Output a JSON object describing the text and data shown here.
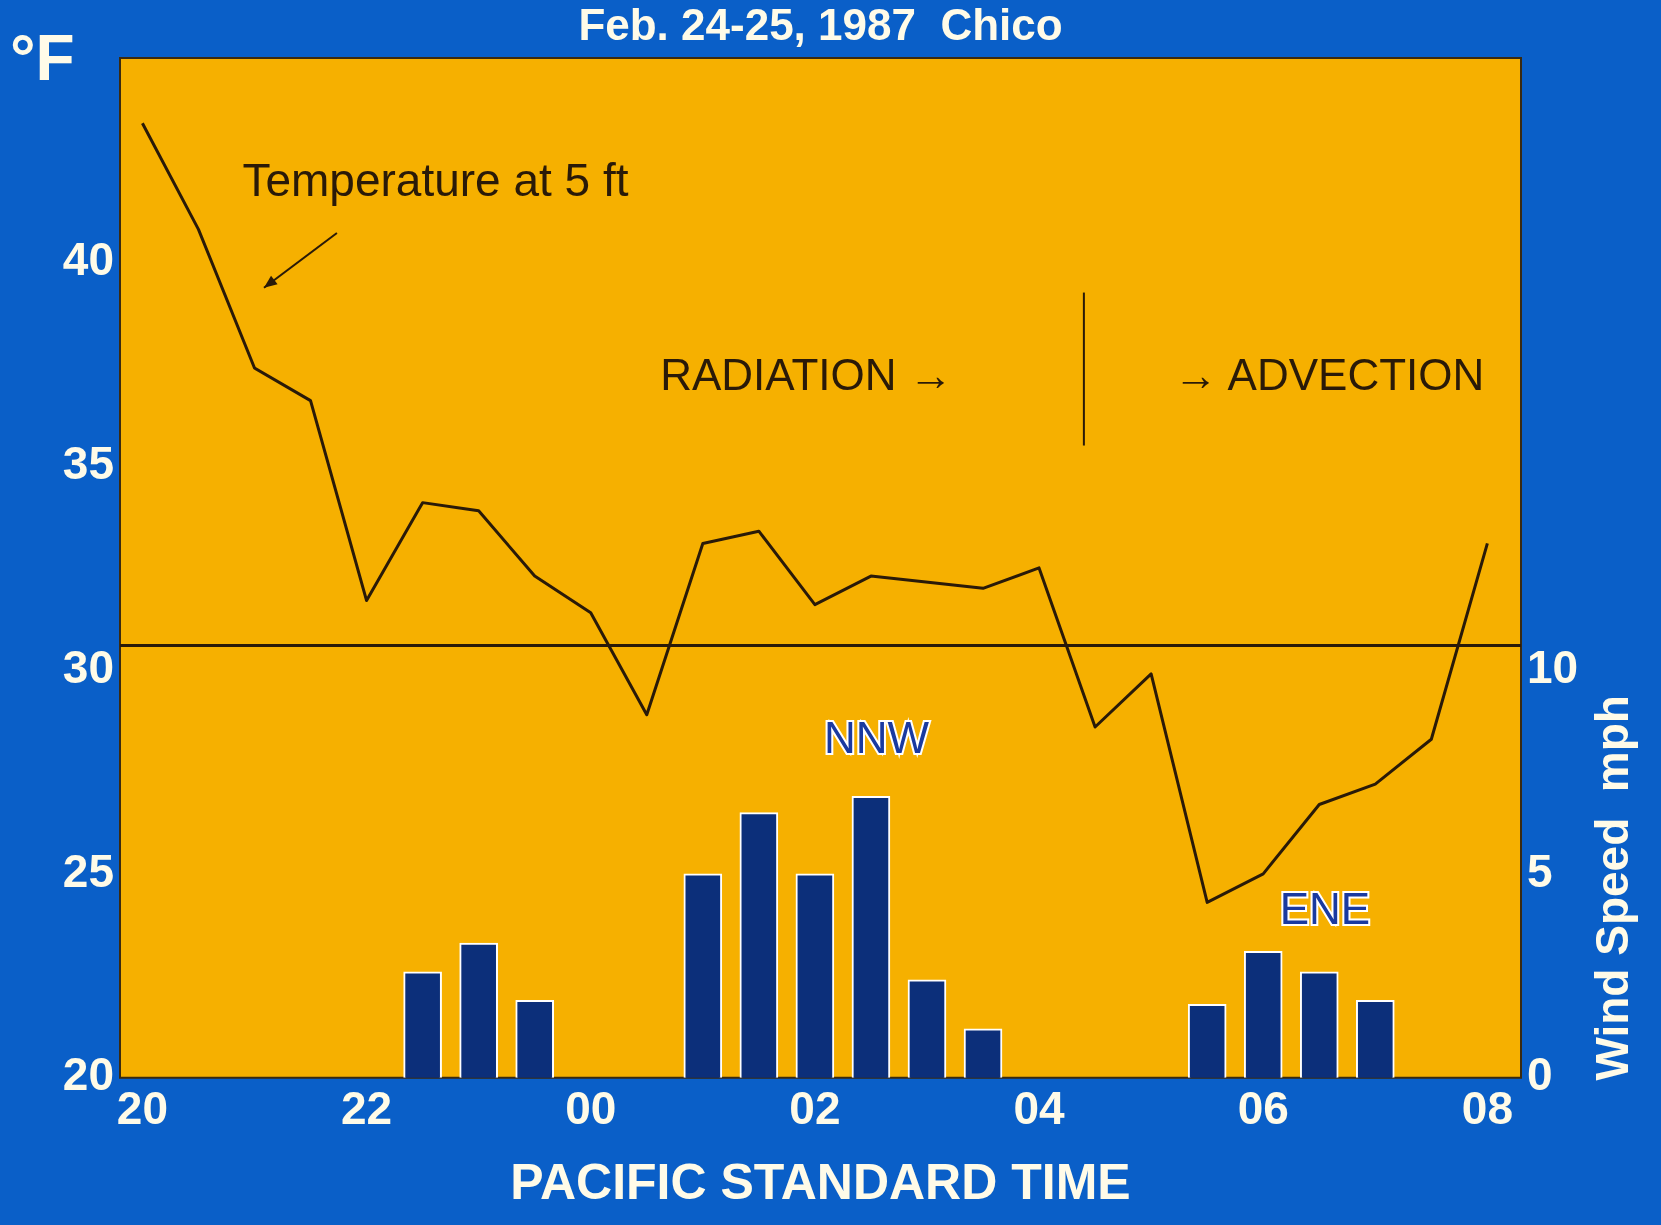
{
  "chart_data": {
    "type": "line",
    "title": "Feb. 24-25, 1987  Chico",
    "xlabel": "PACIFIC STANDARD TIME",
    "ylabel": "°F",
    "y2label": "Wind Speed  mph",
    "xlim": [
      "1987-02-24T19:48",
      "1987-02-25T08:18"
    ],
    "xticks": [
      {
        "value": "1987-02-24T20:00",
        "label": "20"
      },
      {
        "value": "1987-02-24T22:00",
        "label": "22"
      },
      {
        "value": "1987-02-25T00:00",
        "label": "00"
      },
      {
        "value": "1987-02-25T02:00",
        "label": "02"
      },
      {
        "value": "1987-02-25T04:00",
        "label": "04"
      },
      {
        "value": "1987-02-25T06:00",
        "label": "06"
      },
      {
        "value": "1987-02-25T08:00",
        "label": "08"
      }
    ],
    "ylim": [
      20,
      45
    ],
    "yticks": [
      20,
      25,
      30,
      35,
      40
    ],
    "y2lim": [
      0,
      25
    ],
    "y2ticks": [
      0,
      5,
      10
    ],
    "grid": false,
    "legend": false,
    "series": [
      {
        "name": "Temperature at 5 ft",
        "color": "#2a1a08",
        "x": [
          "1987-02-24T20:00",
          "1987-02-24T20:30",
          "1987-02-24T21:00",
          "1987-02-24T21:30",
          "1987-02-24T22:00",
          "1987-02-24T22:30",
          "1987-02-24T23:00",
          "1987-02-24T23:30",
          "1987-02-25T00:00",
          "1987-02-25T00:30",
          "1987-02-25T01:00",
          "1987-02-25T01:30",
          "1987-02-25T02:00",
          "1987-02-25T02:30",
          "1987-02-25T03:30",
          "1987-02-25T04:00",
          "1987-02-25T04:30",
          "1987-02-25T05:00",
          "1987-02-25T05:30",
          "1987-02-25T06:00",
          "1987-02-25T06:30",
          "1987-02-25T07:00",
          "1987-02-25T07:30",
          "1987-02-25T08:00"
        ],
        "values": [
          43.4,
          40.8,
          37.4,
          36.6,
          31.7,
          34.1,
          33.9,
          32.3,
          31.4,
          28.9,
          33.1,
          33.4,
          31.6,
          32.3,
          32.0,
          32.5,
          28.6,
          29.9,
          24.3,
          25.0,
          26.7,
          27.2,
          28.3,
          33.1
        ]
      },
      {
        "type": "bar",
        "axis": "y2",
        "color": "#0c2f7a",
        "x": [
          "1987-02-24T22:30",
          "1987-02-24T23:00",
          "1987-02-24T23:30",
          "1987-02-25T01:00",
          "1987-02-25T01:30",
          "1987-02-25T02:00",
          "1987-02-25T02:30",
          "1987-02-25T03:00",
          "1987-02-25T03:30",
          "1987-02-25T05:30",
          "1987-02-25T06:00",
          "1987-02-25T06:30",
          "1987-02-25T07:00"
        ],
        "values": [
          2.6,
          3.3,
          1.9,
          5.0,
          6.5,
          5.0,
          6.9,
          2.4,
          1.2,
          1.8,
          3.1,
          2.6,
          1.9
        ]
      }
    ],
    "ref_lines": [
      {
        "axis": "y",
        "value": 30.6,
        "color": "#2a1a08"
      },
      {
        "axis": "x",
        "value": "1987-02-25T04:24",
        "color": "#2a1a08"
      }
    ],
    "annotations": [
      "RADIATION →",
      "→ ADVECTION",
      "NNW",
      "ENE"
    ]
  }
}
